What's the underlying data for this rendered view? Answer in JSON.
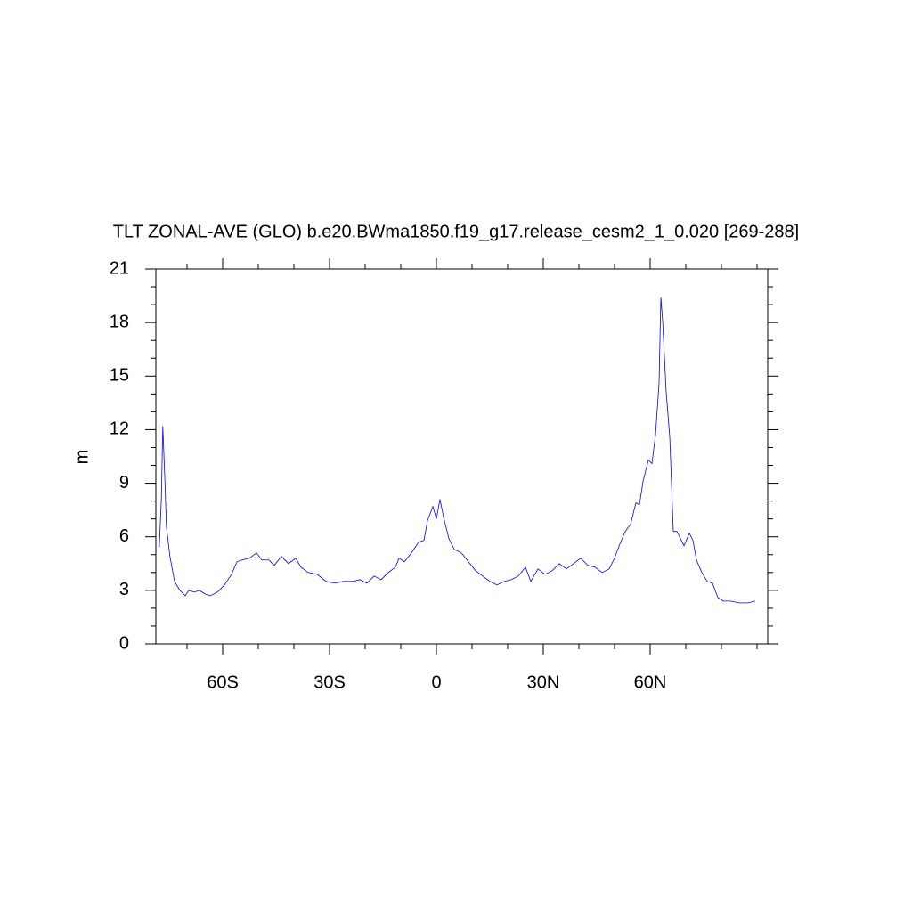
{
  "chart_data": {
    "type": "line",
    "title": "TLT ZONAL-AVE (GLO) b.e20.BWma1850.f19_g17.release_cesm2_1_0.020 [269-288]",
    "y_label": "m",
    "x": [
      -77.8,
      -77.2,
      -76.8,
      -76.2,
      -75.8,
      -74.8,
      -73.5,
      -72,
      -70.5,
      -69.5,
      -68,
      -66.5,
      -65,
      -63.5,
      -61.5,
      -59.5,
      -57.5,
      -56,
      -54.5,
      -52.5,
      -50.5,
      -49,
      -47,
      -45.5,
      -43.5,
      -41.5,
      -39.5,
      -38,
      -36,
      -33.5,
      -31,
      -28.5,
      -26,
      -23.5,
      -21.5,
      -19.5,
      -17.5,
      -15.5,
      -13.5,
      -11.5,
      -10.5,
      -9,
      -7,
      -5,
      -3.5,
      -2.5,
      -1,
      0,
      1,
      2,
      3.5,
      5,
      7,
      9,
      11,
      13,
      15,
      17,
      19,
      21,
      23,
      25,
      26.5,
      28.5,
      30.5,
      32.5,
      34.5,
      36.5,
      38.5,
      40.5,
      42.5,
      44.5,
      46.5,
      48.5,
      50,
      51.5,
      53,
      54.5,
      56,
      57,
      58,
      59.5,
      60.5,
      61.5,
      62.5,
      63,
      63.5,
      64.5,
      65.5,
      66.5,
      67.5,
      68.5,
      69.5,
      71,
      72,
      73,
      74.5,
      76,
      77.5,
      79,
      80.5,
      82.5,
      85,
      87.5,
      89.5
    ],
    "series": [
      {
        "color": "#0000ff",
        "values": [
          5.4,
          8.1,
          12.2,
          9.1,
          6.6,
          4.9,
          3.5,
          3.0,
          2.7,
          3.0,
          2.9,
          3.0,
          2.8,
          2.7,
          2.9,
          3.3,
          3.9,
          4.6,
          4.7,
          4.8,
          5.1,
          4.7,
          4.7,
          4.4,
          4.9,
          4.5,
          4.8,
          4.3,
          4.0,
          3.9,
          3.5,
          3.4,
          3.5,
          3.5,
          3.6,
          3.4,
          3.8,
          3.6,
          4.0,
          4.3,
          4.8,
          4.6,
          5.1,
          5.7,
          5.8,
          6.9,
          7.7,
          7.0,
          8.1,
          7.1,
          5.9,
          5.3,
          5.1,
          4.6,
          4.1,
          3.8,
          3.5,
          3.3,
          3.5,
          3.6,
          3.8,
          4.3,
          3.5,
          4.2,
          3.9,
          4.1,
          4.5,
          4.2,
          4.5,
          4.8,
          4.4,
          4.3,
          4.0,
          4.2,
          4.8,
          5.6,
          6.3,
          6.7,
          7.9,
          7.8,
          9.1,
          10.3,
          10.1,
          11.7,
          14.6,
          19.4,
          18.1,
          14.1,
          11.6,
          6.3,
          6.3,
          5.9,
          5.5,
          6.2,
          5.8,
          4.7,
          4.0,
          3.5,
          3.4,
          2.6,
          2.4,
          2.4,
          2.3,
          2.3,
          2.4
        ]
      }
    ],
    "xlim": [
      -78.75,
      93
    ],
    "xticks": [
      {
        "value": -60,
        "label": "60S"
      },
      {
        "value": -30,
        "label": "30S"
      },
      0,
      {
        "value": 30,
        "label": "30N"
      },
      {
        "value": 60,
        "label": "60N"
      }
    ],
    "xminorticks": [
      -70,
      -50,
      -40,
      -20,
      -10,
      10,
      20,
      40,
      50,
      70,
      80,
      90
    ],
    "ylim": [
      0,
      21
    ],
    "yticks": [
      0,
      3,
      6,
      9,
      12,
      15,
      18,
      21
    ],
    "yminorticks": [
      1,
      2,
      4,
      5,
      7,
      8,
      10,
      11,
      13,
      14,
      16,
      17,
      19,
      20
    ]
  }
}
